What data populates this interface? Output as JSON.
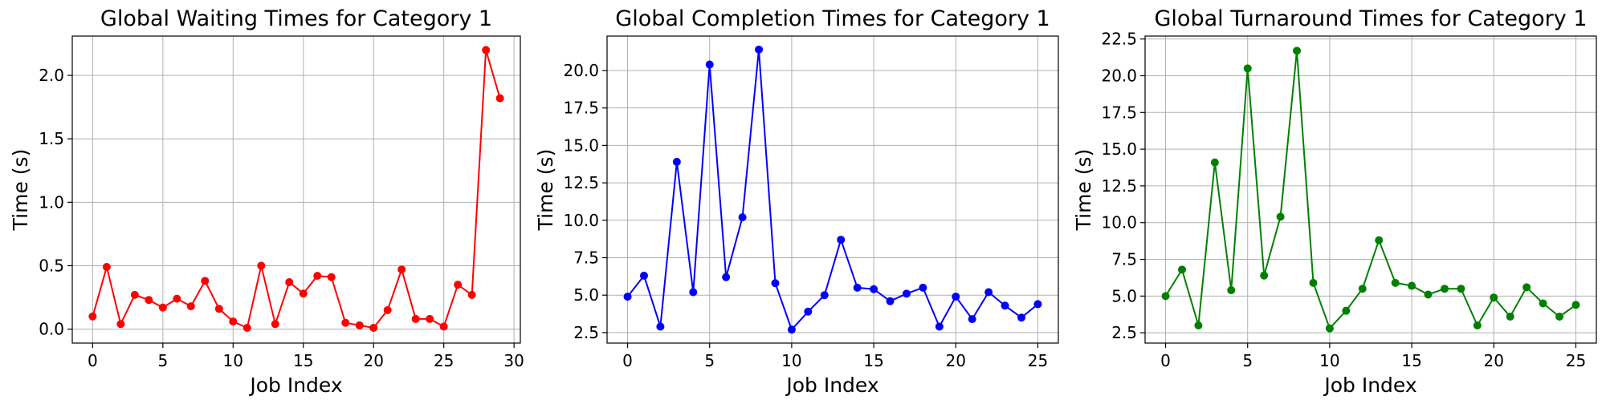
{
  "chart_data": [
    {
      "type": "line",
      "title": "Global Waiting Times for Category 1",
      "xlabel": "Job Index",
      "ylabel": "Time (s)",
      "xlim": [
        -1.45,
        30.45
      ],
      "ylim": [
        -0.11,
        2.31
      ],
      "xticks": [
        0,
        5,
        10,
        15,
        20,
        25,
        30
      ],
      "xtick_labels": [
        "0",
        "5",
        "10",
        "15",
        "20",
        "25",
        "30"
      ],
      "yticks": [
        0.0,
        0.5,
        1.0,
        1.5,
        2.0
      ],
      "ytick_labels": [
        "0.0",
        "0.5",
        "1.0",
        "1.5",
        "2.0"
      ],
      "grid": true,
      "color": "#ff0000",
      "series": [
        {
          "x": [
            0,
            1,
            2,
            3,
            4,
            5,
            6,
            7,
            8,
            9,
            10,
            11,
            12,
            13,
            14,
            15,
            16,
            17,
            18,
            19,
            20,
            21,
            22,
            23,
            24,
            25,
            26,
            27,
            28,
            29
          ],
          "values": [
            0.1,
            0.49,
            0.04,
            0.27,
            0.23,
            0.17,
            0.24,
            0.18,
            0.38,
            0.16,
            0.06,
            0.01,
            0.5,
            0.04,
            0.37,
            0.28,
            0.42,
            0.41,
            0.05,
            0.03,
            0.01,
            0.15,
            0.47,
            0.08,
            0.08,
            0.02,
            0.35,
            0.27,
            2.2,
            1.82
          ]
        }
      ]
    },
    {
      "type": "line",
      "title": "Global Completion Times for Category 1",
      "xlabel": "Job Index",
      "ylabel": "Time (s)",
      "xlim": [
        -1.25,
        26.25
      ],
      "ylim": [
        1.8,
        22.3
      ],
      "xticks": [
        0,
        5,
        10,
        15,
        20,
        25
      ],
      "xtick_labels": [
        "0",
        "5",
        "10",
        "15",
        "20",
        "25"
      ],
      "yticks": [
        2.5,
        5.0,
        7.5,
        10.0,
        12.5,
        15.0,
        17.5,
        20.0
      ],
      "ytick_labels": [
        "2.5",
        "5.0",
        "7.5",
        "10.0",
        "12.5",
        "15.0",
        "17.5",
        "20.0"
      ],
      "grid": true,
      "color": "#0000ff",
      "series": [
        {
          "x": [
            0,
            1,
            2,
            3,
            4,
            5,
            6,
            7,
            8,
            9,
            10,
            11,
            12,
            13,
            14,
            15,
            16,
            17,
            18,
            19,
            20,
            21,
            22,
            23,
            24,
            25
          ],
          "values": [
            4.9,
            6.3,
            2.9,
            13.9,
            5.2,
            20.4,
            6.2,
            10.2,
            21.4,
            5.8,
            2.7,
            3.9,
            5.0,
            8.7,
            5.5,
            5.4,
            4.6,
            5.1,
            5.5,
            2.9,
            4.9,
            3.4,
            5.2,
            4.3,
            3.5,
            4.4
          ]
        }
      ]
    },
    {
      "type": "line",
      "title": "Global Turnaround Times for Category 1",
      "xlabel": "Job Index",
      "ylabel": "Time (s)",
      "xlim": [
        -1.25,
        26.25
      ],
      "ylim": [
        1.8,
        22.7
      ],
      "xticks": [
        0,
        5,
        10,
        15,
        20,
        25
      ],
      "xtick_labels": [
        "0",
        "5",
        "10",
        "15",
        "20",
        "25"
      ],
      "yticks": [
        2.5,
        5.0,
        7.5,
        10.0,
        12.5,
        15.0,
        17.5,
        20.0,
        22.5
      ],
      "ytick_labels": [
        "2.5",
        "5.0",
        "7.5",
        "10.0",
        "12.5",
        "15.0",
        "17.5",
        "20.0",
        "22.5"
      ],
      "grid": true,
      "color": "#008000",
      "series": [
        {
          "x": [
            0,
            1,
            2,
            3,
            4,
            5,
            6,
            7,
            8,
            9,
            10,
            11,
            12,
            13,
            14,
            15,
            16,
            17,
            18,
            19,
            20,
            21,
            22,
            23,
            24,
            25
          ],
          "values": [
            5.0,
            6.8,
            3.0,
            14.1,
            5.4,
            20.5,
            6.4,
            10.4,
            21.7,
            5.9,
            2.8,
            4.0,
            5.5,
            8.8,
            5.9,
            5.7,
            5.1,
            5.5,
            5.5,
            3.0,
            4.9,
            3.6,
            5.6,
            4.5,
            3.6,
            4.4
          ]
        }
      ]
    }
  ]
}
